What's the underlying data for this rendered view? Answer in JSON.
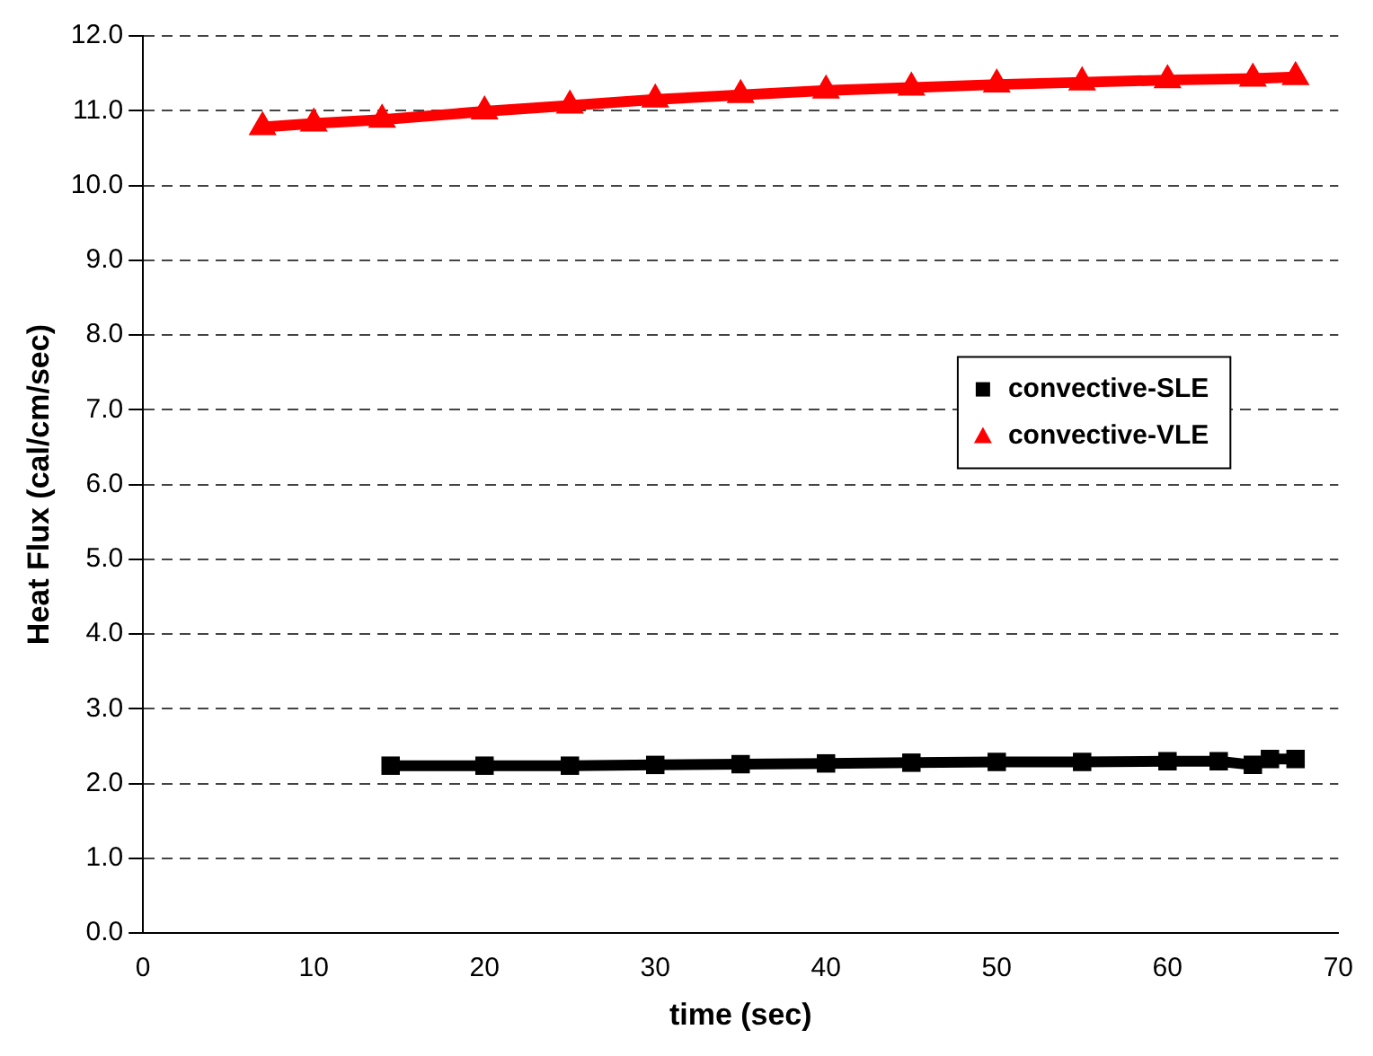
{
  "chart_data": {
    "type": "line",
    "xlabel": "time (sec)",
    "ylabel": "Heat Flux (cal/cm/sec)",
    "xlim": [
      0,
      70
    ],
    "xticks": [
      0,
      10,
      20,
      30,
      40,
      50,
      60,
      70
    ],
    "ylim": [
      0,
      12
    ],
    "yticks": [
      {
        "value": 0,
        "label": "0.0"
      },
      {
        "value": 1,
        "label": "1.0"
      },
      {
        "value": 2,
        "label": "2.0"
      },
      {
        "value": 3,
        "label": "3.0"
      },
      {
        "value": 4,
        "label": "4.0"
      },
      {
        "value": 5,
        "label": "5.0"
      },
      {
        "value": 6,
        "label": "6.0"
      },
      {
        "value": 7,
        "label": "7.0"
      },
      {
        "value": 8,
        "label": "8.0"
      },
      {
        "value": 9,
        "label": "9.0"
      },
      {
        "value": 10,
        "label": "10.0"
      },
      {
        "value": 11,
        "label": "11.0"
      },
      {
        "value": 12,
        "label": "12.0"
      }
    ],
    "grid": "y",
    "legend": "right",
    "series": [
      {
        "name": "convective-SLE",
        "color": "#000000",
        "marker": "square",
        "x": [
          14.5,
          20,
          25,
          30,
          35,
          40,
          45,
          50,
          55,
          60,
          63,
          65,
          66,
          67.5
        ],
        "values": [
          2.24,
          2.24,
          2.24,
          2.25,
          2.26,
          2.27,
          2.28,
          2.29,
          2.29,
          2.3,
          2.3,
          2.25,
          2.33,
          2.33
        ]
      },
      {
        "name": "convective-VLE",
        "color": "#ff0000",
        "marker": "triangle",
        "x": [
          7,
          10,
          14,
          20,
          25,
          30,
          35,
          40,
          45,
          50,
          55,
          60,
          65,
          67.5
        ],
        "values": [
          10.78,
          10.83,
          10.88,
          10.99,
          11.07,
          11.15,
          11.21,
          11.27,
          11.31,
          11.35,
          11.38,
          11.41,
          11.43,
          11.45
        ]
      }
    ]
  }
}
